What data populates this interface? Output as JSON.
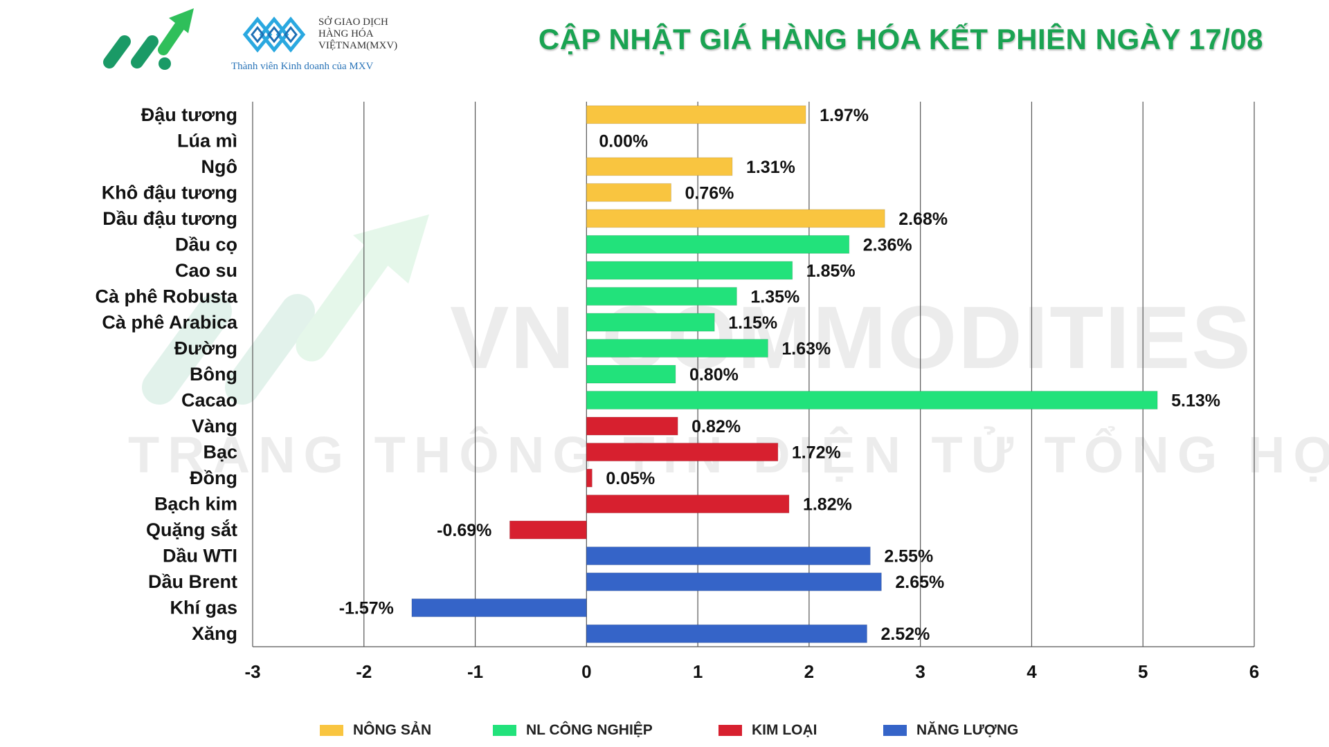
{
  "header": {
    "title": "CẬP NHẬT GIÁ HÀNG HÓA KẾT PHIÊN NGÀY 17/08",
    "mxv_lines": [
      "SỞ GIAO DỊCH",
      "HÀNG HÓA",
      "VIỆTNAM(MXV)"
    ],
    "mxv_subtitle": "Thành viên Kinh doanh của MXV"
  },
  "watermark": {
    "line1": "VN COMMODITIES",
    "line2": "TRANG THÔNG TIN ĐIỆN TỬ TỔNG HỢP"
  },
  "colors": {
    "nong_san": "#f9c540",
    "nl_cong_nghiep": "#22e27b",
    "kim_loai": "#d7202f",
    "nang_luong": "#3564c8",
    "title": "#1aa352"
  },
  "legend": [
    {
      "label": "NÔNG SẢN",
      "color": "#f9c540"
    },
    {
      "label": "NL CÔNG NGHIỆP",
      "color": "#22e27b"
    },
    {
      "label": "KIM LOẠI",
      "color": "#d7202f"
    },
    {
      "label": "NĂNG LƯỢNG",
      "color": "#3564c8"
    }
  ],
  "chart_data": {
    "type": "bar",
    "orientation": "horizontal",
    "title": "CẬP NHẬT GIÁ HÀNG HÓA KẾT PHIÊN NGÀY 17/08",
    "xlabel": "",
    "ylabel": "",
    "xlim": [
      -3,
      6
    ],
    "xticks": [
      -3,
      -2,
      -1,
      0,
      1,
      2,
      3,
      4,
      5,
      6
    ],
    "grid": "vertical",
    "legend_position": "bottom",
    "categories": [
      "Đậu tương",
      "Lúa mì",
      "Ngô",
      "Khô đậu tương",
      "Dầu đậu tương",
      "Dầu cọ",
      "Cao su",
      "Cà phê Robusta",
      "Cà phê Arabica",
      "Đường",
      "Bông",
      "Cacao",
      "Vàng",
      "Bạc",
      "Đồng",
      "Bạch kim",
      "Quặng sắt",
      "Dầu WTI",
      "Dầu Brent",
      "Khí gas",
      "Xăng"
    ],
    "values": [
      1.97,
      0.0,
      1.31,
      0.76,
      2.68,
      2.36,
      1.85,
      1.35,
      1.15,
      1.63,
      0.8,
      5.13,
      0.82,
      1.72,
      0.05,
      1.82,
      -0.69,
      2.55,
      2.65,
      -1.57,
      2.52
    ],
    "labels": [
      "1.97%",
      "0.00%",
      "1.31%",
      "0.76%",
      "2.68%",
      "2.36%",
      "1.85%",
      "1.35%",
      "1.15%",
      "1.63%",
      "0.80%",
      "5.13%",
      "0.82%",
      "1.72%",
      "0.05%",
      "1.82%",
      "-0.69%",
      "2.55%",
      "2.65%",
      "-1.57%",
      "2.52%"
    ],
    "groups": [
      "NÔNG SẢN",
      "NÔNG SẢN",
      "NÔNG SẢN",
      "NÔNG SẢN",
      "NÔNG SẢN",
      "NL CÔNG NGHIỆP",
      "NL CÔNG NGHIỆP",
      "NL CÔNG NGHIỆP",
      "NL CÔNG NGHIỆP",
      "NL CÔNG NGHIỆP",
      "NL CÔNG NGHIỆP",
      "NL CÔNG NGHIỆP",
      "KIM LOẠI",
      "KIM LOẠI",
      "KIM LOẠI",
      "KIM LOẠI",
      "KIM LOẠI",
      "NĂNG LƯỢNG",
      "NĂNG LƯỢNG",
      "NĂNG LƯỢNG",
      "NĂNG LƯỢNG"
    ]
  }
}
